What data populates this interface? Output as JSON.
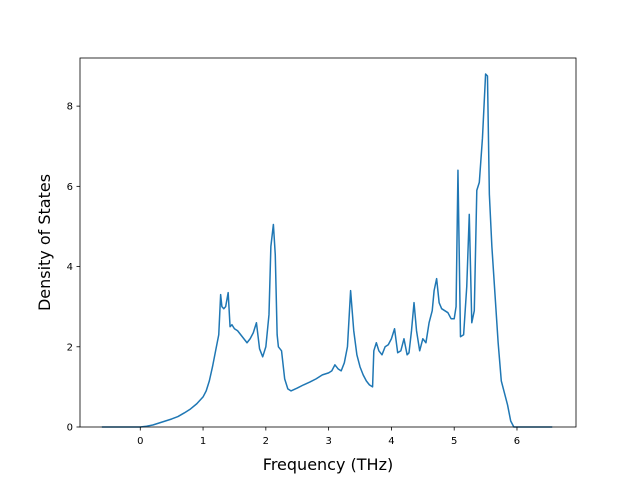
{
  "chart_data": {
    "type": "line",
    "title": "",
    "xlabel": "Frequency (THz)",
    "ylabel": "Density of States",
    "xlim": [
      -0.96,
      6.94
    ],
    "ylim": [
      0,
      9.2
    ],
    "xticks": [
      0,
      1,
      2,
      3,
      4,
      5,
      6
    ],
    "yticks": [
      0,
      2,
      4,
      6,
      8
    ],
    "grid": false,
    "legend": "none",
    "colors": {
      "line": "#1f77b4",
      "axes": "#000000",
      "background": "#ffffff"
    },
    "series": [
      {
        "x": [
          -0.6,
          -0.4,
          -0.2,
          0.0,
          0.1,
          0.2,
          0.3,
          0.4,
          0.5,
          0.6,
          0.7,
          0.8,
          0.9,
          1.0,
          1.05,
          1.1,
          1.15,
          1.2,
          1.25,
          1.28,
          1.3,
          1.33,
          1.36,
          1.4,
          1.43,
          1.46,
          1.5,
          1.55,
          1.6,
          1.65,
          1.7,
          1.75,
          1.8,
          1.85,
          1.9,
          1.95,
          2.0,
          2.05,
          2.08,
          2.12,
          2.15,
          2.18,
          2.2,
          2.25,
          2.3,
          2.35,
          2.4,
          2.5,
          2.6,
          2.7,
          2.8,
          2.9,
          3.0,
          3.05,
          3.1,
          3.15,
          3.2,
          3.25,
          3.3,
          3.35,
          3.4,
          3.45,
          3.5,
          3.55,
          3.6,
          3.65,
          3.7,
          3.72,
          3.76,
          3.8,
          3.85,
          3.9,
          3.95,
          4.0,
          4.05,
          4.1,
          4.15,
          4.2,
          4.25,
          4.28,
          4.32,
          4.36,
          4.4,
          4.45,
          4.5,
          4.55,
          4.6,
          4.65,
          4.68,
          4.72,
          4.76,
          4.8,
          4.85,
          4.9,
          4.95,
          5.0,
          5.03,
          5.06,
          5.1,
          5.15,
          5.2,
          5.24,
          5.28,
          5.32,
          5.36,
          5.4,
          5.45,
          5.5,
          5.53,
          5.56,
          5.6,
          5.65,
          5.7,
          5.75,
          5.8,
          5.85,
          5.9,
          5.95,
          6.0,
          6.1,
          6.3,
          6.55
        ],
        "y": [
          0,
          0,
          0,
          0,
          0.02,
          0.05,
          0.1,
          0.15,
          0.2,
          0.26,
          0.35,
          0.45,
          0.58,
          0.75,
          0.9,
          1.15,
          1.5,
          1.9,
          2.3,
          3.3,
          3.0,
          2.95,
          3.0,
          3.35,
          2.5,
          2.55,
          2.45,
          2.4,
          2.3,
          2.2,
          2.1,
          2.2,
          2.35,
          2.6,
          1.95,
          1.75,
          2.0,
          2.8,
          4.5,
          5.05,
          4.3,
          2.3,
          2.0,
          1.9,
          1.2,
          0.95,
          0.9,
          0.97,
          1.05,
          1.12,
          1.2,
          1.3,
          1.35,
          1.4,
          1.55,
          1.45,
          1.4,
          1.6,
          2.0,
          3.4,
          2.4,
          1.8,
          1.5,
          1.3,
          1.15,
          1.05,
          1.0,
          1.9,
          2.1,
          1.9,
          1.8,
          2.0,
          2.05,
          2.2,
          2.45,
          1.85,
          1.9,
          2.2,
          1.8,
          1.85,
          2.4,
          3.1,
          2.4,
          1.9,
          2.2,
          2.1,
          2.6,
          2.9,
          3.4,
          3.7,
          3.1,
          2.95,
          2.9,
          2.85,
          2.7,
          2.7,
          3.0,
          6.4,
          2.25,
          2.3,
          3.5,
          5.3,
          2.6,
          2.9,
          5.9,
          6.1,
          7.2,
          8.8,
          8.75,
          5.8,
          4.5,
          3.3,
          2.1,
          1.15,
          0.85,
          0.55,
          0.15,
          0.0,
          0.0,
          0.0,
          0.0,
          0.0
        ]
      }
    ]
  }
}
